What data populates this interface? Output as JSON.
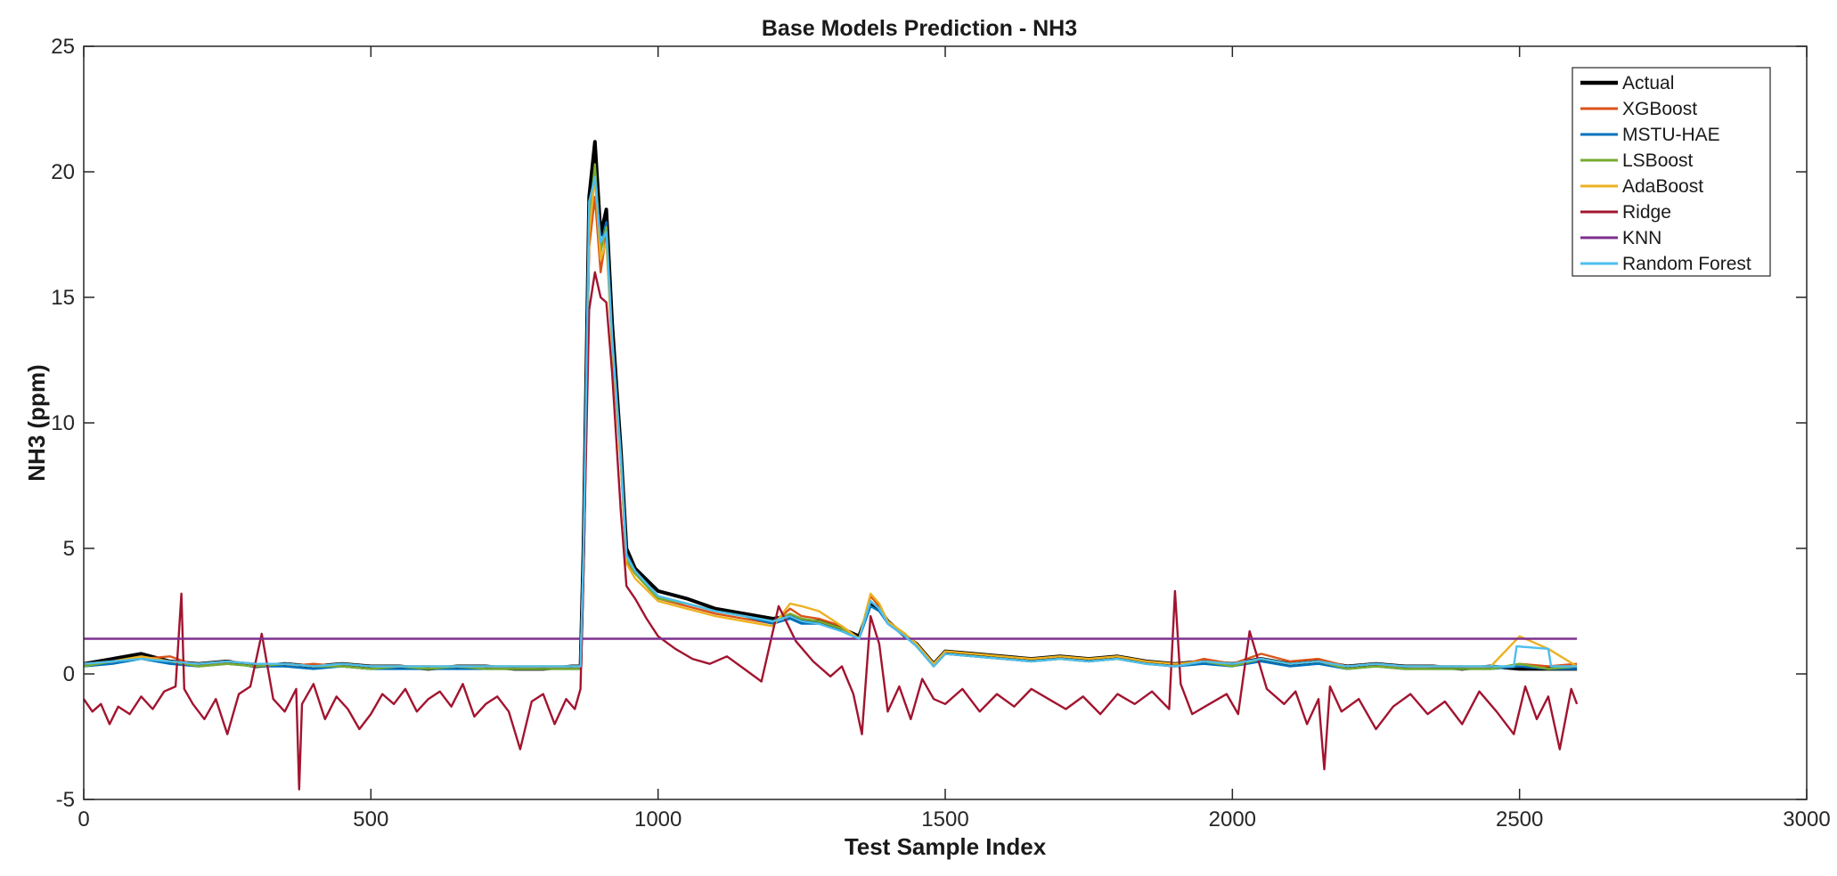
{
  "chart_data": {
    "type": "line",
    "title": "Base Models Prediction - NH3",
    "xlabel": "Test Sample Index",
    "ylabel": "NH3 (ppm)",
    "xlim": [
      0,
      3000
    ],
    "ylim": [
      -5,
      25
    ],
    "xticks": [
      0,
      500,
      1000,
      1500,
      2000,
      2500,
      3000
    ],
    "yticks": [
      -5,
      0,
      5,
      10,
      15,
      20,
      25
    ],
    "grid": false,
    "legend_position": "top-right",
    "colors": {
      "Actual": "#000000",
      "XGBoost": "#d95319",
      "MSTU-HAE": "#0072bd",
      "LSBoost": "#77ac30",
      "AdaBoost": "#edb120",
      "Ridge": "#a2142f",
      "KNN": "#7e2f8e",
      "Random Forest": "#4dbeee"
    },
    "series": [
      {
        "name": "Actual",
        "x": [
          0,
          50,
          100,
          150,
          200,
          250,
          300,
          350,
          400,
          450,
          500,
          550,
          600,
          650,
          700,
          750,
          800,
          850,
          865,
          870,
          880,
          890,
          900,
          910,
          920,
          935,
          945,
          960,
          1000,
          1050,
          1100,
          1150,
          1200,
          1230,
          1250,
          1280,
          1320,
          1350,
          1370,
          1385,
          1400,
          1430,
          1450,
          1480,
          1500,
          1550,
          1600,
          1650,
          1700,
          1750,
          1800,
          1850,
          1900,
          1950,
          2000,
          2050,
          2100,
          2150,
          2200,
          2250,
          2300,
          2350,
          2400,
          2450,
          2500,
          2550,
          2600
        ],
        "y": [
          0.4,
          0.6,
          0.8,
          0.5,
          0.4,
          0.5,
          0.3,
          0.4,
          0.3,
          0.4,
          0.3,
          0.3,
          0.2,
          0.3,
          0.3,
          0.2,
          0.2,
          0.3,
          0.3,
          5.0,
          19.0,
          21.2,
          17.5,
          18.5,
          14.0,
          9.0,
          5.0,
          4.2,
          3.3,
          3.0,
          2.6,
          2.4,
          2.2,
          2.3,
          2.1,
          2.1,
          1.8,
          1.5,
          2.8,
          2.6,
          2.1,
          1.5,
          1.2,
          0.4,
          0.9,
          0.8,
          0.7,
          0.6,
          0.7,
          0.6,
          0.7,
          0.5,
          0.4,
          0.5,
          0.4,
          0.6,
          0.4,
          0.5,
          0.3,
          0.4,
          0.3,
          0.3,
          0.2,
          0.3,
          0.2,
          0.2,
          0.2
        ]
      },
      {
        "name": "XGBoost",
        "x": [
          0,
          50,
          100,
          150,
          200,
          250,
          300,
          350,
          400,
          450,
          500,
          550,
          600,
          650,
          700,
          750,
          800,
          850,
          865,
          870,
          880,
          890,
          900,
          910,
          920,
          935,
          945,
          960,
          1000,
          1050,
          1100,
          1150,
          1200,
          1230,
          1250,
          1280,
          1320,
          1350,
          1370,
          1385,
          1400,
          1430,
          1450,
          1480,
          1500,
          1550,
          1600,
          1650,
          1700,
          1750,
          1800,
          1850,
          1900,
          1950,
          2000,
          2050,
          2100,
          2150,
          2200,
          2250,
          2300,
          2350,
          2400,
          2450,
          2500,
          2550,
          2600
        ],
        "y": [
          0.3,
          0.5,
          0.6,
          0.7,
          0.3,
          0.5,
          0.4,
          0.3,
          0.4,
          0.3,
          0.2,
          0.3,
          0.3,
          0.2,
          0.3,
          0.2,
          0.3,
          0.2,
          0.3,
          4.5,
          17.0,
          19.0,
          16.0,
          17.5,
          13.0,
          8.5,
          4.5,
          4.0,
          3.0,
          2.7,
          2.4,
          2.2,
          2.0,
          2.6,
          2.3,
          2.2,
          1.9,
          1.4,
          3.1,
          2.7,
          2.0,
          1.6,
          1.1,
          0.3,
          0.8,
          0.7,
          0.6,
          0.5,
          0.6,
          0.5,
          0.6,
          0.4,
          0.3,
          0.6,
          0.4,
          0.8,
          0.5,
          0.6,
          0.3,
          0.4,
          0.2,
          0.3,
          0.3,
          0.2,
          0.4,
          0.3,
          0.4
        ]
      },
      {
        "name": "MSTU-HAE",
        "x": [
          0,
          50,
          100,
          150,
          200,
          250,
          300,
          350,
          400,
          450,
          500,
          550,
          600,
          650,
          700,
          750,
          800,
          850,
          865,
          870,
          880,
          890,
          900,
          910,
          920,
          935,
          945,
          960,
          1000,
          1050,
          1100,
          1150,
          1200,
          1230,
          1250,
          1280,
          1320,
          1350,
          1370,
          1385,
          1400,
          1430,
          1450,
          1480,
          1500,
          1550,
          1600,
          1650,
          1700,
          1750,
          1800,
          1850,
          1900,
          1950,
          2000,
          2050,
          2100,
          2150,
          2200,
          2250,
          2300,
          2350,
          2400,
          2450,
          2500,
          2550,
          2600
        ],
        "y": [
          0.3,
          0.4,
          0.6,
          0.4,
          0.3,
          0.4,
          0.3,
          0.3,
          0.2,
          0.3,
          0.2,
          0.2,
          0.2,
          0.2,
          0.2,
          0.2,
          0.2,
          0.2,
          0.2,
          4.8,
          18.5,
          20.0,
          17.0,
          18.0,
          13.5,
          8.8,
          4.8,
          4.1,
          3.1,
          2.8,
          2.5,
          2.3,
          2.0,
          2.2,
          2.0,
          2.0,
          1.7,
          1.4,
          2.7,
          2.5,
          2.0,
          1.5,
          1.1,
          0.3,
          0.8,
          0.7,
          0.6,
          0.5,
          0.6,
          0.5,
          0.6,
          0.4,
          0.3,
          0.4,
          0.3,
          0.5,
          0.3,
          0.4,
          0.2,
          0.3,
          0.2,
          0.2,
          0.2,
          0.2,
          0.3,
          0.2,
          0.2
        ]
      },
      {
        "name": "LSBoost",
        "x": [
          0,
          50,
          100,
          150,
          200,
          250,
          300,
          350,
          400,
          450,
          500,
          550,
          600,
          650,
          700,
          750,
          800,
          850,
          865,
          870,
          880,
          890,
          900,
          910,
          920,
          935,
          945,
          960,
          1000,
          1050,
          1100,
          1150,
          1200,
          1230,
          1250,
          1280,
          1320,
          1350,
          1370,
          1385,
          1400,
          1430,
          1450,
          1480,
          1500,
          1550,
          1600,
          1650,
          1700,
          1750,
          1800,
          1850,
          1900,
          1950,
          2000,
          2050,
          2100,
          2150,
          2200,
          2250,
          2300,
          2350,
          2400,
          2450,
          2500,
          2550,
          2600
        ],
        "y": [
          0.3,
          0.5,
          0.6,
          0.5,
          0.3,
          0.4,
          0.3,
          0.4,
          0.3,
          0.3,
          0.2,
          0.3,
          0.2,
          0.3,
          0.2,
          0.2,
          0.2,
          0.2,
          0.2,
          4.6,
          18.0,
          20.3,
          16.8,
          17.8,
          13.2,
          8.6,
          4.6,
          4.0,
          3.0,
          2.8,
          2.5,
          2.3,
          2.1,
          2.4,
          2.2,
          2.1,
          1.8,
          1.4,
          2.9,
          2.6,
          2.1,
          1.5,
          1.1,
          0.3,
          0.8,
          0.7,
          0.6,
          0.5,
          0.6,
          0.5,
          0.6,
          0.4,
          0.3,
          0.5,
          0.3,
          0.6,
          0.4,
          0.5,
          0.2,
          0.3,
          0.2,
          0.2,
          0.2,
          0.2,
          0.4,
          0.2,
          0.3
        ]
      },
      {
        "name": "AdaBoost",
        "x": [
          0,
          50,
          100,
          150,
          200,
          250,
          300,
          350,
          400,
          450,
          500,
          550,
          600,
          650,
          700,
          750,
          800,
          850,
          865,
          870,
          880,
          890,
          900,
          910,
          920,
          935,
          945,
          960,
          1000,
          1050,
          1100,
          1150,
          1200,
          1230,
          1250,
          1280,
          1320,
          1350,
          1370,
          1385,
          1400,
          1430,
          1450,
          1480,
          1500,
          1550,
          1600,
          1650,
          1700,
          1750,
          1800,
          1850,
          1900,
          1950,
          2000,
          2050,
          2100,
          2150,
          2200,
          2250,
          2300,
          2350,
          2400,
          2450,
          2500,
          2550,
          2600
        ],
        "y": [
          0.4,
          0.5,
          0.7,
          0.5,
          0.4,
          0.5,
          0.4,
          0.4,
          0.3,
          0.4,
          0.3,
          0.3,
          0.3,
          0.3,
          0.3,
          0.3,
          0.3,
          0.3,
          0.3,
          4.4,
          17.5,
          19.8,
          16.5,
          17.2,
          13.0,
          8.4,
          4.4,
          3.8,
          2.9,
          2.6,
          2.3,
          2.1,
          1.9,
          2.8,
          2.7,
          2.5,
          1.9,
          1.4,
          3.2,
          2.8,
          2.1,
          1.6,
          1.2,
          0.4,
          0.9,
          0.8,
          0.7,
          0.6,
          0.7,
          0.6,
          0.7,
          0.5,
          0.4,
          0.5,
          0.4,
          0.6,
          0.4,
          0.5,
          0.3,
          0.4,
          0.3,
          0.3,
          0.3,
          0.3,
          1.5,
          1.0,
          0.3
        ]
      },
      {
        "name": "Ridge",
        "x": [
          0,
          15,
          30,
          45,
          60,
          80,
          100,
          120,
          140,
          160,
          170,
          175,
          190,
          210,
          230,
          250,
          270,
          290,
          310,
          330,
          350,
          370,
          375,
          380,
          400,
          420,
          440,
          460,
          480,
          500,
          520,
          540,
          560,
          580,
          600,
          620,
          640,
          660,
          680,
          700,
          720,
          740,
          760,
          780,
          800,
          820,
          840,
          855,
          865,
          870,
          880,
          890,
          900,
          910,
          920,
          935,
          945,
          960,
          980,
          1000,
          1030,
          1060,
          1090,
          1120,
          1150,
          1180,
          1210,
          1240,
          1270,
          1300,
          1320,
          1340,
          1355,
          1370,
          1385,
          1400,
          1420,
          1440,
          1460,
          1480,
          1500,
          1530,
          1560,
          1590,
          1620,
          1650,
          1680,
          1710,
          1740,
          1770,
          1800,
          1830,
          1860,
          1890,
          1900,
          1910,
          1930,
          1960,
          1990,
          2010,
          2030,
          2060,
          2090,
          2110,
          2130,
          2150,
          2160,
          2170,
          2190,
          2220,
          2250,
          2280,
          2310,
          2340,
          2370,
          2400,
          2430,
          2460,
          2490,
          2510,
          2530,
          2550,
          2570,
          2590,
          2600
        ],
        "y": [
          -1.0,
          -1.5,
          -1.2,
          -2.0,
          -1.3,
          -1.6,
          -0.9,
          -1.4,
          -0.7,
          -0.5,
          3.2,
          -0.6,
          -1.2,
          -1.8,
          -1.0,
          -2.4,
          -0.8,
          -0.5,
          1.6,
          -1.0,
          -1.5,
          -0.6,
          -4.6,
          -1.2,
          -0.4,
          -1.8,
          -0.9,
          -1.4,
          -2.2,
          -1.6,
          -0.8,
          -1.2,
          -0.6,
          -1.5,
          -1.0,
          -0.7,
          -1.3,
          -0.4,
          -1.7,
          -1.2,
          -0.9,
          -1.5,
          -3.0,
          -1.1,
          -0.8,
          -2.0,
          -1.0,
          -1.4,
          -0.6,
          4.0,
          14.5,
          16.0,
          15.0,
          14.8,
          12.0,
          6.5,
          3.5,
          3.0,
          2.2,
          1.5,
          1.0,
          0.6,
          0.4,
          0.7,
          0.2,
          -0.3,
          2.7,
          1.3,
          0.5,
          -0.1,
          0.3,
          -0.8,
          -2.4,
          2.3,
          1.2,
          -1.5,
          -0.5,
          -1.8,
          -0.2,
          -1.0,
          -1.2,
          -0.6,
          -1.5,
          -0.8,
          -1.3,
          -0.6,
          -1.0,
          -1.4,
          -0.9,
          -1.6,
          -0.8,
          -1.2,
          -0.7,
          -1.4,
          3.3,
          -0.4,
          -1.6,
          -1.2,
          -0.8,
          -1.6,
          1.7,
          -0.6,
          -1.2,
          -0.7,
          -2.0,
          -1.0,
          -3.8,
          -0.5,
          -1.5,
          -1.0,
          -2.2,
          -1.3,
          -0.8,
          -1.6,
          -1.1,
          -2.0,
          -0.7,
          -1.5,
          -2.4,
          -0.5,
          -1.8,
          -0.9,
          -3.0,
          -0.6,
          -1.2
        ]
      },
      {
        "name": "KNN",
        "x": [
          0,
          2600
        ],
        "y": [
          1.4,
          1.4
        ]
      },
      {
        "name": "Random Forest",
        "x": [
          0,
          50,
          100,
          150,
          200,
          250,
          300,
          350,
          400,
          450,
          500,
          550,
          600,
          650,
          700,
          750,
          800,
          850,
          865,
          870,
          880,
          890,
          900,
          910,
          920,
          935,
          945,
          960,
          1000,
          1050,
          1100,
          1150,
          1200,
          1230,
          1250,
          1280,
          1320,
          1350,
          1370,
          1385,
          1400,
          1430,
          1450,
          1480,
          1500,
          1550,
          1600,
          1650,
          1700,
          1750,
          1800,
          1850,
          1900,
          1950,
          2000,
          2050,
          2100,
          2150,
          2200,
          2250,
          2300,
          2350,
          2400,
          2450,
          2490,
          2495,
          2550,
          2555,
          2600
        ],
        "y": [
          0.4,
          0.5,
          0.6,
          0.5,
          0.4,
          0.5,
          0.4,
          0.4,
          0.3,
          0.4,
          0.3,
          0.3,
          0.3,
          0.3,
          0.3,
          0.3,
          0.3,
          0.3,
          0.3,
          4.7,
          18.8,
          19.8,
          17.2,
          17.6,
          13.4,
          8.7,
          4.7,
          4.1,
          3.1,
          2.8,
          2.5,
          2.3,
          2.1,
          2.3,
          2.1,
          2.0,
          1.7,
          1.4,
          2.9,
          2.6,
          2.0,
          1.5,
          1.1,
          0.3,
          0.8,
          0.7,
          0.6,
          0.5,
          0.6,
          0.5,
          0.6,
          0.4,
          0.3,
          0.5,
          0.4,
          0.6,
          0.4,
          0.5,
          0.3,
          0.4,
          0.3,
          0.3,
          0.3,
          0.3,
          0.3,
          1.1,
          1.0,
          0.3,
          0.3
        ]
      }
    ]
  }
}
